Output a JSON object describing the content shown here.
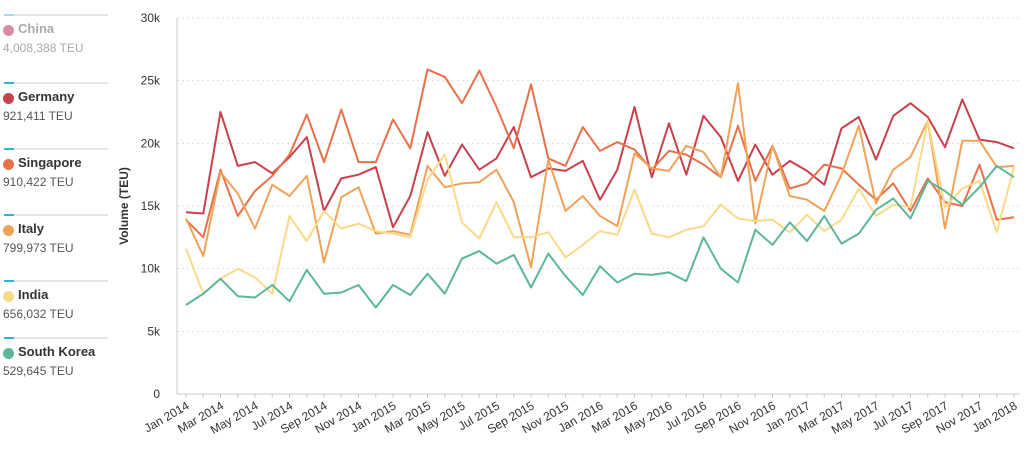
{
  "legend": {
    "items": [
      {
        "name": "China",
        "value": "4,008,388 TEU",
        "color": "#d98ba5",
        "active": false
      },
      {
        "name": "Germany",
        "value": "921,411 TEU",
        "color": "#c8404c",
        "active": true
      },
      {
        "name": "Singapore",
        "value": "910,422 TEU",
        "color": "#e8714a",
        "active": true
      },
      {
        "name": "Italy",
        "value": "799,973 TEU",
        "color": "#f0a259",
        "active": true
      },
      {
        "name": "India",
        "value": "656,032 TEU",
        "color": "#f9d98a",
        "active": true
      },
      {
        "name": "South Korea",
        "value": "529,645 TEU",
        "color": "#5cb795",
        "active": true
      }
    ]
  },
  "chart_data": {
    "type": "line",
    "title": "",
    "xlabel": "",
    "ylabel": "Volume (TEU)",
    "ylim": [
      0,
      30000
    ],
    "yticks": [
      0,
      5000,
      10000,
      15000,
      20000,
      25000,
      30000
    ],
    "ytick_labels": [
      "0",
      "5k",
      "10k",
      "15k",
      "20k",
      "25k",
      "30k"
    ],
    "x": [
      "Jan 2014",
      "Feb 2014",
      "Mar 2014",
      "Apr 2014",
      "May 2014",
      "Jun 2014",
      "Jul 2014",
      "Aug 2014",
      "Sep 2014",
      "Oct 2014",
      "Nov 2014",
      "Dec 2014",
      "Jan 2015",
      "Feb 2015",
      "Mar 2015",
      "Apr 2015",
      "May 2015",
      "Jun 2015",
      "Jul 2015",
      "Aug 2015",
      "Sep 2015",
      "Oct 2015",
      "Nov 2015",
      "Dec 2015",
      "Jan 2016",
      "Feb 2016",
      "Mar 2016",
      "Apr 2016",
      "May 2016",
      "Jun 2016",
      "Jul 2016",
      "Aug 2016",
      "Sep 2016",
      "Oct 2016",
      "Nov 2016",
      "Dec 2016",
      "Jan 2017",
      "Feb 2017",
      "Mar 2017",
      "Apr 2017",
      "May 2017",
      "Jun 2017",
      "Jul 2017",
      "Aug 2017",
      "Sep 2017",
      "Oct 2017",
      "Nov 2017",
      "Dec 2017",
      "Jan 2018"
    ],
    "xtick_labels": [
      "Jan 2014",
      "Mar 2014",
      "May 2014",
      "Jul 2014",
      "Sep 2014",
      "Nov 2014",
      "Jan 2015",
      "Mar 2015",
      "May 2015",
      "Jul 2015",
      "Sep 2015",
      "Nov 2015",
      "Jan 2016",
      "Mar 2016",
      "May 2016",
      "Jul 2016",
      "Sep 2016",
      "Nov 2016",
      "Jan 2017",
      "Mar 2017",
      "May 2017",
      "Jul 2017",
      "Sep 2017",
      "Nov 2017",
      "Jan 2018"
    ],
    "series": [
      {
        "name": "Germany",
        "color": "#c8404c",
        "values": [
          14500,
          14400,
          22500,
          18200,
          18500,
          17600,
          18900,
          20500,
          14600,
          17200,
          17500,
          18100,
          13300,
          15800,
          20900,
          17400,
          19900,
          17900,
          18800,
          21300,
          17300,
          18000,
          17800,
          18600,
          15500,
          17900,
          22900,
          17300,
          21600,
          17500,
          22200,
          20500,
          17000,
          19900,
          17500,
          18600,
          17800,
          16700,
          21200,
          22100,
          18700,
          22200,
          23200,
          22100,
          19700,
          23500,
          20300,
          20100,
          19600
        ]
      },
      {
        "name": "Singapore",
        "color": "#e8714a",
        "values": [
          13900,
          12500,
          17900,
          14200,
          16200,
          17400,
          19100,
          22300,
          18500,
          22700,
          18500,
          18500,
          21900,
          19600,
          25900,
          25300,
          23200,
          25800,
          22900,
          19600,
          24700,
          18800,
          18200,
          21300,
          19400,
          20100,
          19500,
          17900,
          19400,
          19100,
          18300,
          17300,
          21400,
          17000,
          19800,
          16400,
          16800,
          18300,
          18000,
          16700,
          15500,
          16800,
          14600,
          17200,
          15300,
          15000,
          18300,
          13900,
          14100
        ]
      },
      {
        "name": "Italy",
        "color": "#f0a259",
        "values": [
          14000,
          11000,
          17700,
          16000,
          13200,
          16700,
          15800,
          17400,
          10500,
          15700,
          16500,
          12800,
          13000,
          12700,
          18200,
          16500,
          16800,
          16900,
          17900,
          15300,
          10100,
          18700,
          14600,
          15800,
          14200,
          13400,
          19200,
          18000,
          17800,
          19800,
          19300,
          17300,
          24800,
          13600,
          19800,
          15800,
          15500,
          14600,
          17500,
          21400,
          15200,
          17900,
          18900,
          21800,
          13200,
          20200,
          20200,
          18100,
          18200
        ]
      },
      {
        "name": "India",
        "color": "#f9d98a",
        "values": [
          11600,
          8000,
          9200,
          10000,
          9300,
          8000,
          14200,
          12200,
          14600,
          13200,
          13600,
          13000,
          12800,
          12500,
          17100,
          19100,
          13700,
          12400,
          15300,
          12500,
          12500,
          12900,
          10900,
          11900,
          13000,
          12700,
          16300,
          12800,
          12500,
          13100,
          13400,
          15100,
          14000,
          13800,
          13900,
          12900,
          14300,
          13000,
          13900,
          16400,
          14200,
          15100,
          14900,
          21800,
          14900,
          16400,
          17000,
          12900,
          18100
        ]
      },
      {
        "name": "South Korea",
        "color": "#5cb795",
        "values": [
          7100,
          8000,
          9200,
          7800,
          7700,
          8700,
          7400,
          9900,
          8000,
          8100,
          8700,
          6900,
          8700,
          7900,
          9600,
          8000,
          10800,
          11400,
          10400,
          11100,
          8500,
          11200,
          9400,
          7900,
          10200,
          8900,
          9600,
          9500,
          9700,
          9000,
          12500,
          10000,
          8900,
          13100,
          11900,
          13700,
          12200,
          14200,
          12000,
          12800,
          14700,
          15600,
          14000,
          17000,
          16200,
          15100,
          16500,
          18200,
          17300
        ]
      }
    ]
  }
}
